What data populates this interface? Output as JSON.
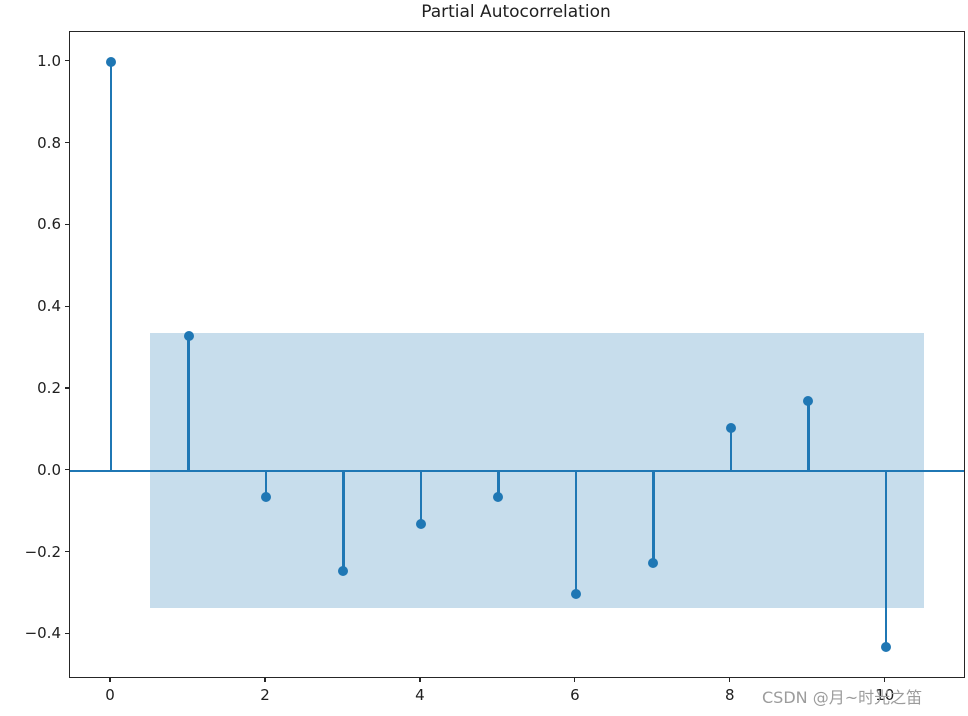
{
  "title": "Partial Autocorrelation",
  "watermark": "CSDN @月~时光之笛",
  "colors": {
    "stem": "#1f77b4",
    "band": "#c7ddec",
    "spine": "#262626",
    "text": "#202020",
    "watermark": "#9c9c9c"
  },
  "chart_data": {
    "type": "stem",
    "title": "Partial Autocorrelation",
    "x": [
      0,
      1,
      2,
      3,
      4,
      5,
      6,
      7,
      8,
      9,
      10
    ],
    "values": [
      1.0,
      0.33,
      -0.065,
      -0.245,
      -0.13,
      -0.065,
      -0.3,
      -0.225,
      0.105,
      0.17,
      -0.43
    ],
    "confidence_band": {
      "x_start": 0.5,
      "x_end": 10.5,
      "lower": -0.336,
      "upper": 0.336
    },
    "zero_line": 0,
    "xlabel": "",
    "ylabel": "",
    "xlim": [
      -0.53,
      11.01
    ],
    "ylim": [
      -0.504,
      1.073
    ],
    "grid": false,
    "legend": null,
    "xticks": [
      {
        "value": 0,
        "label": "0"
      },
      {
        "value": 2,
        "label": "2"
      },
      {
        "value": 4,
        "label": "4"
      },
      {
        "value": 6,
        "label": "6"
      },
      {
        "value": 8,
        "label": "8"
      },
      {
        "value": 10,
        "label": "10"
      }
    ],
    "yticks": [
      {
        "value": 1.0,
        "label": "1.0"
      },
      {
        "value": 0.8,
        "label": "0.8"
      },
      {
        "value": 0.6,
        "label": "0.6"
      },
      {
        "value": 0.4,
        "label": "0.4"
      },
      {
        "value": 0.2,
        "label": "0.2"
      },
      {
        "value": 0.0,
        "label": "0.0"
      },
      {
        "value": -0.2,
        "label": "−0.2"
      },
      {
        "value": -0.4,
        "label": "−0.4"
      }
    ]
  }
}
